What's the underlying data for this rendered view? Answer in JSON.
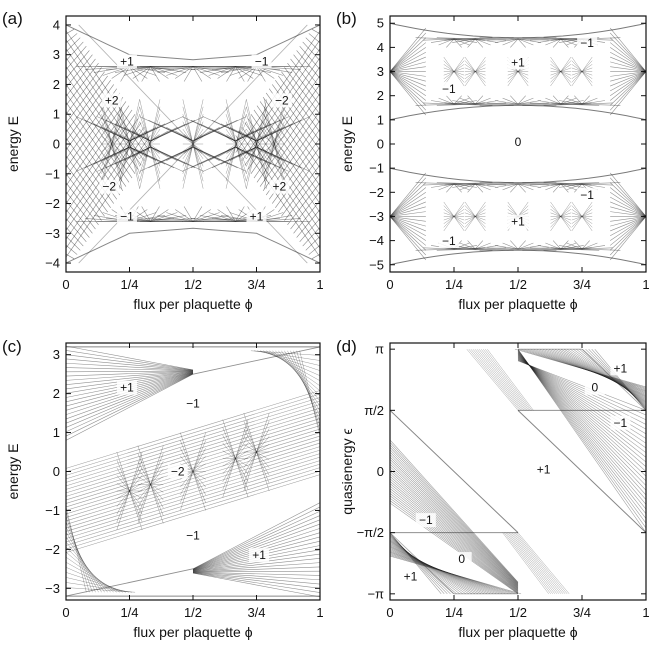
{
  "chart_data": [
    {
      "panel": "(a)",
      "type": "line",
      "xlabel": "flux per plaquette ϕ",
      "ylabel": "energy E",
      "xlim": [
        0,
        1
      ],
      "ylim": [
        -4.3,
        4.3
      ],
      "xticks": [
        0,
        0.25,
        0.5,
        0.75,
        1
      ],
      "xtick_labels": [
        "0",
        "1/4",
        "1/2",
        "3/4",
        "1"
      ],
      "yticks": [
        -4,
        -3,
        -2,
        -1,
        0,
        1,
        2,
        3,
        4
      ],
      "ytick_labels": [
        "−4",
        "−3",
        "−2",
        "−1",
        "0",
        "1",
        "2",
        "3",
        "4"
      ],
      "envelope": {
        "x": [
          0,
          0.25,
          0.5,
          0.75,
          1
        ],
        "upper": [
          4,
          3.0,
          2.83,
          3.0,
          4
        ],
        "lower": [
          -4,
          -3.0,
          -2.83,
          -3.0,
          -4
        ]
      },
      "annotations": [
        {
          "text": "+1",
          "x": 0.24,
          "y": 2.7
        },
        {
          "text": "−1",
          "x": 0.77,
          "y": 2.7
        },
        {
          "text": "+2",
          "x": 0.18,
          "y": 1.4
        },
        {
          "text": "−2",
          "x": 0.85,
          "y": 1.4
        },
        {
          "text": "−2",
          "x": 0.17,
          "y": -1.5
        },
        {
          "text": "+2",
          "x": 0.84,
          "y": -1.5
        },
        {
          "text": "−1",
          "x": 0.24,
          "y": -2.5
        },
        {
          "text": "+1",
          "x": 0.75,
          "y": -2.5
        }
      ]
    },
    {
      "panel": "(b)",
      "type": "line",
      "xlabel": "flux per plaquette ϕ",
      "ylabel": "energy E",
      "xlim": [
        0,
        1
      ],
      "ylim": [
        -5.3,
        5.3
      ],
      "xticks": [
        0,
        0.25,
        0.5,
        0.75,
        1
      ],
      "xtick_labels": [
        "0",
        "1/4",
        "1/2",
        "3/4",
        "1"
      ],
      "yticks": [
        -5,
        -4,
        -3,
        -2,
        -1,
        0,
        1,
        2,
        3,
        4,
        5
      ],
      "ytick_labels": [
        "−5",
        "−4",
        "−3",
        "−2",
        "−1",
        "0",
        "1",
        "2",
        "3",
        "4",
        "5"
      ],
      "bands": [
        {
          "x": [
            0,
            0.5,
            1
          ],
          "upper": [
            5,
            4.4,
            5
          ],
          "lower": [
            1,
            1.6,
            1
          ],
          "center": 3
        },
        {
          "x": [
            0,
            0.5,
            1
          ],
          "upper": [
            -1,
            -1.6,
            -1
          ],
          "lower": [
            -5,
            -4.4,
            -5
          ],
          "center": -3
        }
      ],
      "annotations": [
        {
          "text": "−1",
          "x": 0.77,
          "y": 4.1
        },
        {
          "text": "+1",
          "x": 0.5,
          "y": 3.3
        },
        {
          "text": "−1",
          "x": 0.23,
          "y": 2.2
        },
        {
          "text": "0",
          "x": 0.5,
          "y": 0
        },
        {
          "text": "−1",
          "x": 0.77,
          "y": -2.2
        },
        {
          "text": "+1",
          "x": 0.5,
          "y": -3.3
        },
        {
          "text": "−1",
          "x": 0.23,
          "y": -4.1
        }
      ]
    },
    {
      "panel": "(c)",
      "type": "line",
      "xlabel": "flux per plaquette ϕ",
      "ylabel": "energy E",
      "xlim": [
        0,
        1
      ],
      "ylim": [
        -3.3,
        3.3
      ],
      "xticks": [
        0,
        0.25,
        0.5,
        0.75,
        1
      ],
      "xtick_labels": [
        "0",
        "1/4",
        "1/2",
        "3/4",
        "1"
      ],
      "yticks": [
        -3,
        -2,
        -1,
        0,
        1,
        2,
        3
      ],
      "ytick_labels": [
        "−3",
        "−2",
        "−1",
        "0",
        "1",
        "2",
        "3"
      ],
      "annotations": [
        {
          "text": "+1",
          "x": 0.24,
          "y": 2.1
        },
        {
          "text": "−1",
          "x": 0.5,
          "y": 1.7
        },
        {
          "text": "−2",
          "x": 0.44,
          "y": -0.05
        },
        {
          "text": "−1",
          "x": 0.5,
          "y": -1.7
        },
        {
          "text": "+1",
          "x": 0.76,
          "y": -2.2
        }
      ]
    },
    {
      "panel": "(d)",
      "type": "line",
      "xlabel": "flux per plaquette ϕ",
      "ylabel": "quasienergy ϵ",
      "xlim": [
        0,
        1
      ],
      "ylim": [
        -3.3,
        3.3
      ],
      "xticks": [
        0,
        0.25,
        0.5,
        0.75,
        1
      ],
      "xtick_labels": [
        "0",
        "1/4",
        "1/2",
        "3/4",
        "1"
      ],
      "yticks": [
        -3.14159,
        -1.5708,
        0,
        1.5708,
        3.14159
      ],
      "ytick_labels": [
        "−π",
        "−π/2",
        "0",
        "π/2",
        "π"
      ],
      "annotations": [
        {
          "text": "+1",
          "x": 0.9,
          "y": 2.6
        },
        {
          "text": "0",
          "x": 0.8,
          "y": 2.1
        },
        {
          "text": "−1",
          "x": 0.9,
          "y": 1.2
        },
        {
          "text": "+1",
          "x": 0.6,
          "y": 0
        },
        {
          "text": "−1",
          "x": 0.14,
          "y": -1.3
        },
        {
          "text": "0",
          "x": 0.28,
          "y": -2.3
        },
        {
          "text": "+1",
          "x": 0.08,
          "y": -2.75
        }
      ]
    }
  ]
}
